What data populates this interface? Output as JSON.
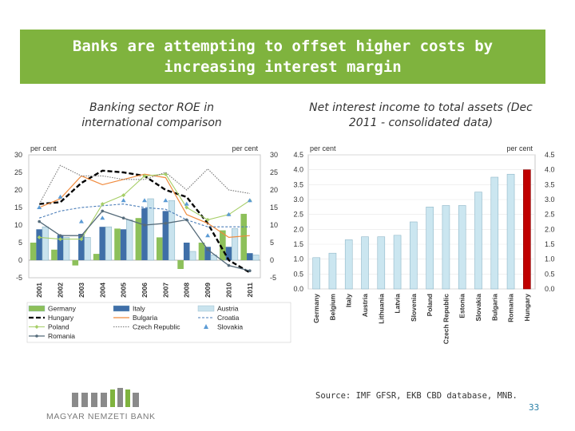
{
  "slide": {
    "title_line1": "Banks are attempting to offset higher costs by",
    "title_line2": "increasing interest margin",
    "left_subtitle_line1": "Banking sector ROE in",
    "left_subtitle_line2": "international comparison",
    "right_subtitle_line1": "Net interest income to total assets (Dec",
    "right_subtitle_line2": "2011 - consolidated data)",
    "source": "Source: IMF GFSR, EKB CBD database, MNB.",
    "page_number": "33",
    "logo_text": "MAGYAR NEMZETI BANK"
  },
  "colors": {
    "banner": "#7fb33e",
    "germany": "#8dc05a",
    "italy": "#3f6fa8",
    "austria": "#c9e3ee",
    "hungary": "#000000",
    "bulgaria": "#f08a3c",
    "croatia": "#4a7db8",
    "poland": "#a6ce67",
    "czech": "#777777",
    "slovakia": "#5b9bd5",
    "romania": "#556b7a",
    "bar_default": "#cbe6f0",
    "bar_highlight": "#c00000"
  },
  "chart_data": [
    {
      "type": "bar+line",
      "title": "Banking sector ROE in international comparison",
      "unit_left": "per cent",
      "unit_right": "per cent",
      "ylim": [
        -5,
        30
      ],
      "yticks": [
        -5,
        0,
        5,
        10,
        15,
        20,
        25,
        30
      ],
      "categories": [
        "2001",
        "2002",
        "2003",
        "2004",
        "2005",
        "2006",
        "2007",
        "2008",
        "2009",
        "2010",
        "2011"
      ],
      "bar_series": [
        {
          "name": "Germany",
          "values": [
            5,
            3,
            -1.5,
            1.8,
            9,
            12,
            6.5,
            -2.5,
            5,
            8.5,
            13.2
          ]
        },
        {
          "name": "Italy",
          "values": [
            8.8,
            7.2,
            7.5,
            9.5,
            8.8,
            14.8,
            14,
            5,
            3.8,
            3.8,
            2
          ]
        },
        {
          "name": "Austria",
          "values": [
            9.5,
            6.5,
            6.5,
            9.5,
            11.5,
            17.5,
            17,
            2.5,
            1.5,
            9,
            1.5
          ]
        }
      ],
      "line_series": [
        {
          "name": "Hungary",
          "values": [
            16,
            16.5,
            22,
            25.5,
            25,
            24,
            20,
            18,
            10.5,
            0,
            -3.5
          ]
        },
        {
          "name": "Bulgaria",
          "values": [
            15,
            17.5,
            24,
            21.5,
            23,
            24.5,
            23.5,
            13,
            10.5,
            6.5,
            7
          ]
        },
        {
          "name": "Croatia",
          "values": [
            12,
            14,
            15,
            15.5,
            16,
            15,
            14.5,
            11.5,
            9.5,
            9.5,
            9.5
          ]
        },
        {
          "name": "Poland",
          "values": [
            6.5,
            6,
            6,
            16,
            18.5,
            24,
            24.5,
            15,
            11.5,
            13,
            17
          ]
        },
        {
          "name": "Czech Republic",
          "values": [
            16,
            27,
            24,
            24,
            23,
            23,
            25,
            20,
            26,
            20,
            19
          ]
        },
        {
          "name": "Slovakia",
          "values": [
            15,
            18,
            11,
            12,
            17,
            17,
            17,
            16,
            7,
            13,
            17
          ]
        },
        {
          "name": "Romania",
          "values": [
            11,
            7,
            7,
            14,
            12,
            10,
            10.5,
            11.5,
            3,
            -1.5,
            -3
          ]
        }
      ],
      "legend": [
        "Germany",
        "Italy",
        "Austria",
        "Hungary",
        "Bulgaria",
        "Croatia",
        "Poland",
        "Czech Republic",
        "Slovakia",
        "Romania"
      ]
    },
    {
      "type": "bar",
      "title": "Net interest income to total assets (Dec 2011 - consolidated data)",
      "unit_left": "per cent",
      "unit_right": "per cent",
      "ylim": [
        0,
        4.5
      ],
      "yticks": [
        0.0,
        0.5,
        1.0,
        1.5,
        2.0,
        2.5,
        3.0,
        3.5,
        4.0,
        4.5
      ],
      "categories": [
        "Germany",
        "Belgium",
        "Italy",
        "Austria",
        "Lithuania",
        "Latvia",
        "Slovenia",
        "Poland",
        "Czech Republic",
        "Estonia",
        "Slovakia",
        "Bulgaria",
        "Romania",
        "Hungary"
      ],
      "values": [
        1.05,
        1.2,
        1.65,
        1.75,
        1.75,
        1.8,
        2.25,
        2.75,
        2.8,
        2.8,
        3.25,
        3.75,
        3.85,
        4.0
      ],
      "highlight": "Hungary"
    }
  ]
}
